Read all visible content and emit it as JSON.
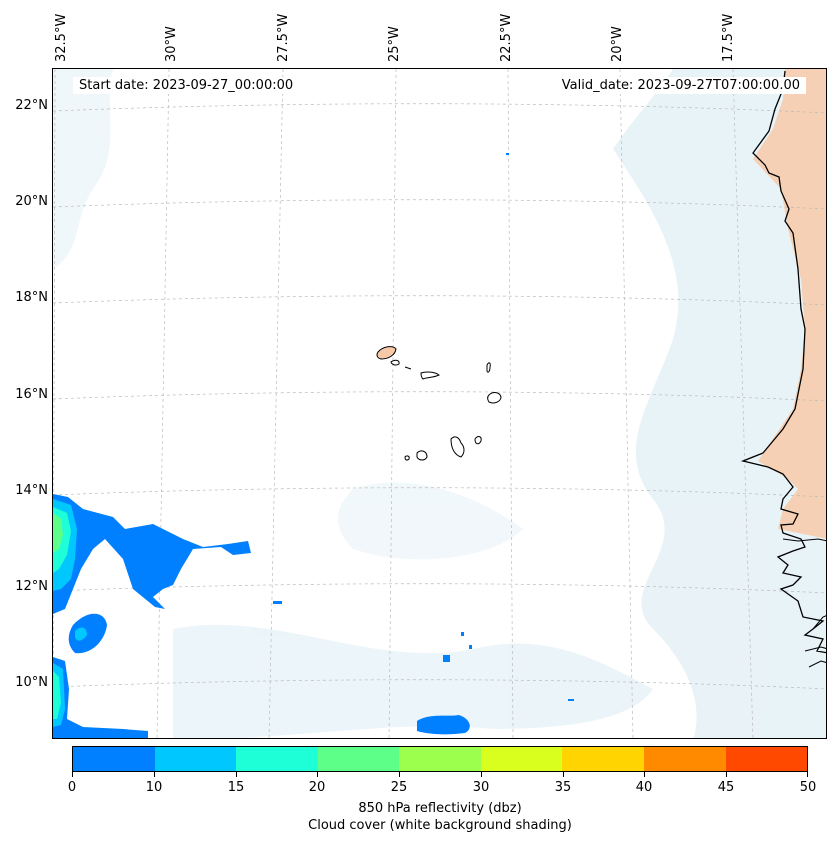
{
  "map": {
    "start_date": "Start date: 2023-09-27_00:00:00",
    "valid_date": "Valid_date: 2023-09-27T07:00:00.00",
    "lon_labels": [
      "32.5°W",
      "30°W",
      "27.5°W",
      "25°W",
      "22.5°W",
      "20°W",
      "17.5°W"
    ],
    "lat_labels": [
      "22°N",
      "20°N",
      "18°N",
      "16°N",
      "14°N",
      "12°N",
      "10°N"
    ],
    "extent": {
      "lon_min": -32.6,
      "lon_max": -15.3,
      "lat_min": 8.9,
      "lat_max": 22.75
    },
    "colors": {
      "coastline": "#000000",
      "grid": "#bbbbbb",
      "land_warm": "#f7c9a8",
      "cloud": "#d6e9f2"
    }
  },
  "colorbar": {
    "ticks": [
      "0",
      "10",
      "15",
      "20",
      "25",
      "30",
      "35",
      "40",
      "45",
      "50"
    ],
    "colors": [
      "#0080ff",
      "#00c8ff",
      "#1effd8",
      "#5eff88",
      "#9cff4e",
      "#d8ff1e",
      "#ffd400",
      "#ff8a00",
      "#ff4800"
    ],
    "label": "850 hPa reflectivity (dbz)",
    "sublabel": "Cloud cover (white background shading)"
  }
}
